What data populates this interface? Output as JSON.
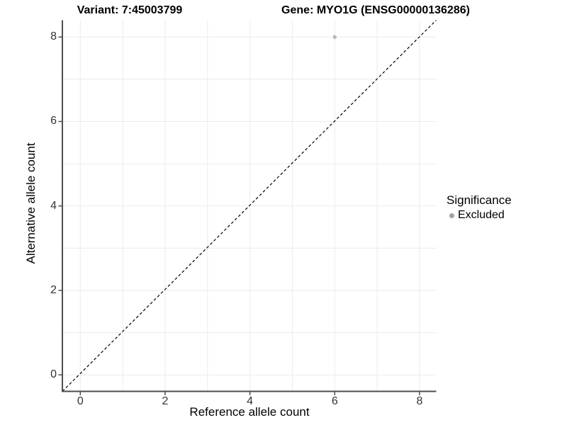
{
  "titles": {
    "variant": "Variant: 7:45003799",
    "gene": "Gene: MYO1G (ENSG00000136286)"
  },
  "axes": {
    "x_label": "Reference allele count",
    "y_label": "Alternative allele count",
    "x_tick_labels": [
      "0",
      "2",
      "4",
      "6",
      "8"
    ],
    "y_tick_labels": [
      "0",
      "2",
      "4",
      "6",
      "8"
    ]
  },
  "legend": {
    "title": "Significance",
    "entries": [
      {
        "label": "Excluded",
        "color": "#a1a1a1"
      }
    ]
  },
  "colors": {
    "background": "#ffffff",
    "gridline": "#ebebeb",
    "axis_line": "#4d4d4d",
    "tick_text": "#333333",
    "point": "#b9b9b9",
    "reference_line": "#000000"
  },
  "chart_data": {
    "type": "scatter",
    "title": "Variant: 7:45003799 | Gene: MYO1G (ENSG00000136286)",
    "xlabel": "Reference allele count",
    "ylabel": "Alternative allele count",
    "x_ticks": [
      0,
      2,
      4,
      6,
      8
    ],
    "y_ticks": [
      0,
      2,
      4,
      6,
      8
    ],
    "grid_values": [
      0,
      1,
      2,
      3,
      4,
      5,
      6,
      7,
      8
    ],
    "xlim": [
      -0.42,
      8.42
    ],
    "ylim": [
      -0.42,
      8.42
    ],
    "grid": "on",
    "legend_position": "right",
    "series": [
      {
        "name": "Excluded",
        "points": [
          {
            "x": 6,
            "y": 8
          }
        ]
      }
    ],
    "reference_line": {
      "kind": "identity",
      "equation": "y = x",
      "style": "dashed"
    }
  }
}
